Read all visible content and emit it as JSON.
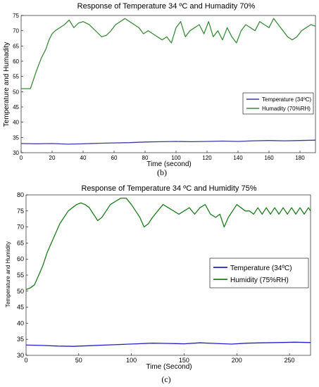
{
  "chart_data": [
    {
      "type": "line",
      "title": "Response of Temperature 34 ºC and Humadity 70%",
      "xlabel": "Time (second)",
      "ylabel": "Temperature and Humadity",
      "caption": "(b)",
      "xlim": [
        0,
        190
      ],
      "ylim": [
        30,
        75
      ],
      "xticks": [
        0,
        20,
        40,
        60,
        80,
        100,
        120,
        140,
        160,
        180
      ],
      "yticks": [
        30,
        35,
        40,
        45,
        50,
        55,
        60,
        65,
        70,
        75
      ],
      "grid": false,
      "legend_position": "right",
      "series": [
        {
          "name": "Temperature (34ºC)",
          "color": "#3a3aa0",
          "x": [
            0,
            10,
            20,
            30,
            40,
            50,
            60,
            70,
            80,
            90,
            100,
            110,
            120,
            130,
            140,
            150,
            160,
            170,
            180,
            190
          ],
          "y": [
            33.0,
            32.9,
            33.0,
            32.8,
            32.9,
            33.1,
            33.2,
            33.3,
            33.5,
            33.6,
            33.7,
            33.6,
            33.7,
            33.8,
            33.7,
            33.9,
            34.0,
            33.9,
            34.0,
            34.1
          ]
        },
        {
          "name": "Humadity (70%RH)",
          "color": "#3d8a3d",
          "x": [
            0,
            3,
            6,
            8,
            10,
            13,
            16,
            18,
            20,
            22,
            25,
            28,
            31,
            34,
            37,
            40,
            44,
            48,
            52,
            55,
            58,
            61,
            64,
            67,
            70,
            73,
            76,
            79,
            82,
            85,
            88,
            91,
            94,
            97,
            100,
            103,
            106,
            109,
            112,
            115,
            118,
            121,
            124,
            127,
            130,
            133,
            136,
            139,
            142,
            145,
            148,
            151,
            154,
            157,
            160,
            163,
            166,
            169,
            172,
            175,
            178,
            181,
            184,
            187,
            190
          ],
          "y": [
            51,
            51,
            51,
            54,
            57,
            61,
            64,
            67,
            69,
            70,
            71,
            72,
            73.5,
            71,
            72.5,
            73,
            72,
            70,
            68,
            68.5,
            70,
            72,
            73,
            74,
            73,
            72,
            71,
            69,
            70,
            69,
            68,
            67,
            68,
            66,
            71,
            73,
            68,
            70,
            71,
            72,
            69,
            73,
            68,
            70,
            67,
            71,
            68,
            66,
            70,
            72,
            71,
            70,
            73,
            72,
            71,
            74,
            72,
            70,
            68,
            67,
            68,
            70,
            71,
            72,
            71.5
          ]
        }
      ]
    },
    {
      "type": "line",
      "title": "Response of Temperature 34 ºC and Humidity 75%",
      "xlabel": "Time (Second)",
      "ylabel": "Temperature and Humidity",
      "caption": "(c)",
      "xlim": [
        0,
        270
      ],
      "ylim": [
        30,
        80
      ],
      "xticks": [
        0,
        50,
        100,
        150,
        200,
        250
      ],
      "yticks": [
        30,
        35,
        40,
        45,
        50,
        55,
        60,
        65,
        70,
        75,
        80
      ],
      "grid": false,
      "legend_position": "right",
      "series": [
        {
          "name": "Temperature (34ºC)",
          "color": "#2020c8",
          "x": [
            0,
            15,
            30,
            45,
            60,
            75,
            90,
            105,
            120,
            135,
            150,
            165,
            180,
            195,
            210,
            225,
            240,
            255,
            270
          ],
          "y": [
            33.2,
            33.1,
            32.9,
            32.8,
            33.0,
            33.2,
            33.4,
            33.6,
            33.8,
            33.7,
            33.6,
            33.9,
            33.7,
            33.5,
            33.8,
            33.9,
            34.0,
            34.1,
            34.0
          ]
        },
        {
          "name": "Humidity (75%RH)",
          "color": "#1e7a1e",
          "x": [
            0,
            4,
            8,
            12,
            16,
            20,
            24,
            28,
            32,
            36,
            40,
            44,
            48,
            52,
            56,
            60,
            64,
            68,
            72,
            76,
            80,
            85,
            90,
            95,
            100,
            104,
            108,
            112,
            116,
            120,
            125,
            130,
            135,
            140,
            145,
            150,
            155,
            160,
            165,
            170,
            175,
            180,
            184,
            188,
            192,
            196,
            200,
            204,
            208,
            212,
            216,
            220,
            224,
            228,
            232,
            236,
            240,
            244,
            248,
            252,
            256,
            260,
            264,
            268,
            270
          ],
          "y": [
            50.5,
            51,
            52,
            55,
            58,
            62,
            65,
            68,
            71,
            73,
            75,
            76,
            77,
            77.5,
            77,
            76,
            74,
            72,
            73,
            75,
            77,
            78,
            79,
            79,
            77,
            75,
            73,
            70,
            71,
            73,
            75,
            77,
            76,
            75,
            74,
            75,
            76,
            74,
            76,
            77,
            74,
            73,
            74,
            70,
            73,
            75,
            77,
            76,
            75,
            75,
            74,
            76,
            74,
            76,
            74,
            76,
            74,
            76,
            74,
            76,
            74,
            76,
            74,
            76,
            75
          ]
        }
      ]
    }
  ]
}
